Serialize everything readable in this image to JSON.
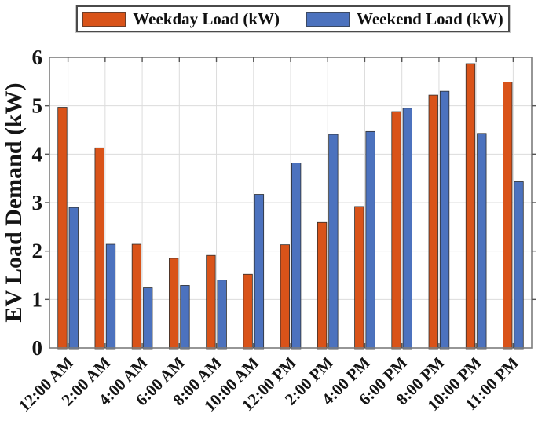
{
  "legend": {
    "items": [
      {
        "label": "Weekday Load (kW)",
        "color": "#D95319"
      },
      {
        "label": "Weekend Load (kW)",
        "color": "#4C72BE"
      }
    ]
  },
  "chart_data": {
    "type": "bar",
    "title": "",
    "xlabel": "",
    "ylabel": "EV Load Demand (kW)",
    "ylim": [
      0,
      6
    ],
    "yticks": [
      0,
      1,
      2,
      3,
      4,
      5,
      6
    ],
    "grid": true,
    "legend_position": "top-center",
    "categories": [
      "12:00 AM",
      "2:00 AM",
      "4:00 AM",
      "6:00 AM",
      "8:00 AM",
      "10:00 AM",
      "12:00 PM",
      "2:00 PM",
      "4:00 PM",
      "6:00 PM",
      "8:00 PM",
      "10:00 PM",
      "11:00 PM"
    ],
    "series": [
      {
        "name": "Weekday Load (kW)",
        "color": "#D95319",
        "values": [
          4.97,
          4.13,
          2.14,
          1.85,
          1.91,
          1.52,
          2.13,
          2.59,
          2.92,
          4.88,
          5.22,
          5.87,
          5.49
        ]
      },
      {
        "name": "Weekend Load (kW)",
        "color": "#4C72BE",
        "values": [
          2.9,
          2.14,
          1.24,
          1.29,
          1.4,
          3.17,
          3.82,
          4.41,
          4.47,
          4.95,
          5.3,
          4.43,
          3.43
        ]
      }
    ],
    "colors": {
      "axis_border": "#7c7c7c",
      "tick": "#555555",
      "gridline": "#dcdcdc",
      "bar_edge": "#2e2e2e",
      "text": "#141414"
    }
  }
}
